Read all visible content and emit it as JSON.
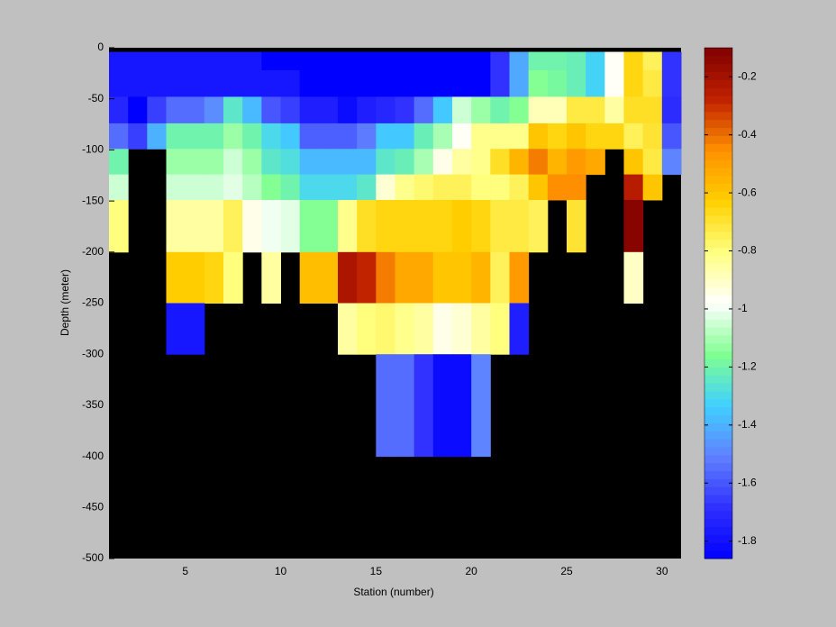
{
  "chart_data": {
    "type": "heatmap",
    "xlabel": "Station (number)",
    "ylabel": "Depth (meter)",
    "x_edges": [
      1,
      2,
      3,
      4,
      5,
      6,
      7,
      8,
      9,
      10,
      11,
      12,
      13,
      14,
      15,
      16,
      17,
      18,
      19,
      20,
      21,
      22,
      23,
      24,
      25,
      26,
      27,
      28,
      29,
      30,
      31
    ],
    "y_edges": [
      0,
      -4,
      -22,
      -48,
      -74,
      -99,
      -124,
      -149,
      -200,
      -250,
      -300,
      -400,
      -500
    ],
    "values": [
      [
        null,
        null,
        null,
        null,
        null,
        null,
        null,
        null,
        null,
        null,
        null,
        null,
        null,
        null,
        null,
        null,
        null,
        null,
        null,
        null,
        null,
        null,
        null,
        null,
        null,
        null,
        null,
        null,
        null,
        null
      ],
      [
        -1.78,
        -1.78,
        -1.78,
        -1.78,
        -1.78,
        -1.78,
        -1.78,
        -1.78,
        -1.86,
        -1.86,
        -1.86,
        -1.86,
        -1.86,
        -1.86,
        -1.86,
        -1.86,
        -1.86,
        -1.86,
        -1.86,
        -1.86,
        -1.68,
        -1.42,
        -1.2,
        -1.2,
        -1.22,
        -1.32,
        -0.97,
        -0.65,
        -0.75,
        -1.68
      ],
      [
        -1.78,
        -1.78,
        -1.78,
        -1.78,
        -1.78,
        -1.78,
        -1.78,
        -1.78,
        -1.78,
        -1.78,
        -1.86,
        -1.86,
        -1.86,
        -1.86,
        -1.86,
        -1.86,
        -1.86,
        -1.86,
        -1.86,
        -1.86,
        -1.68,
        -1.42,
        -1.15,
        -1.18,
        -1.22,
        -1.32,
        -0.97,
        -0.65,
        -0.72,
        -1.68
      ],
      [
        -1.72,
        -1.86,
        -1.65,
        -1.55,
        -1.55,
        -1.48,
        -1.25,
        -1.38,
        -1.6,
        -1.65,
        -1.75,
        -1.75,
        -1.82,
        -1.75,
        -1.72,
        -1.68,
        -1.55,
        -1.35,
        -1.05,
        -1.12,
        -1.2,
        -1.15,
        -0.88,
        -0.88,
        -0.72,
        -0.72,
        -0.85,
        -0.68,
        -0.68,
        -1.7
      ],
      [
        -1.55,
        -1.65,
        -1.4,
        -1.2,
        -1.2,
        -1.2,
        -1.12,
        -1.2,
        -1.3,
        -1.35,
        -1.58,
        -1.58,
        -1.58,
        -1.52,
        -1.35,
        -1.35,
        -1.22,
        -1.1,
        -0.97,
        -0.82,
        -0.82,
        -0.82,
        -0.6,
        -0.65,
        -0.6,
        -0.65,
        -0.65,
        -0.75,
        -0.7,
        -1.6
      ],
      [
        -1.2,
        null,
        null,
        -1.12,
        -1.12,
        -1.12,
        -1.05,
        -1.12,
        -1.25,
        -1.28,
        -1.38,
        -1.38,
        -1.38,
        -1.38,
        -1.25,
        -1.22,
        -1.1,
        -0.95,
        -0.85,
        -0.82,
        -0.68,
        -0.55,
        -0.42,
        -0.55,
        -0.48,
        -0.52,
        null,
        -0.6,
        -0.72,
        -1.5
      ],
      [
        -1.05,
        null,
        null,
        -1.05,
        -1.05,
        -1.05,
        -1.02,
        -1.08,
        -1.15,
        -1.2,
        -1.3,
        -1.3,
        -1.3,
        -1.25,
        -0.92,
        -0.82,
        -0.78,
        -0.75,
        -0.75,
        -0.8,
        -0.8,
        -0.75,
        -0.6,
        -0.45,
        -0.45,
        null,
        null,
        -0.25,
        -0.6,
        null
      ],
      [
        -0.8,
        null,
        null,
        -0.85,
        -0.85,
        -0.85,
        -0.75,
        -0.95,
        -1.0,
        -1.02,
        -1.15,
        -1.15,
        -0.82,
        -0.68,
        -0.65,
        -0.65,
        -0.65,
        -0.65,
        -0.62,
        -0.65,
        -0.72,
        -0.72,
        -0.75,
        null,
        -0.7,
        null,
        null,
        -0.12,
        null,
        null
      ],
      [
        null,
        null,
        null,
        -0.62,
        -0.62,
        -0.65,
        -0.8,
        null,
        -0.85,
        null,
        -0.58,
        -0.58,
        -0.22,
        -0.28,
        -0.42,
        -0.52,
        -0.52,
        -0.6,
        -0.6,
        -0.55,
        -0.75,
        -0.48,
        null,
        null,
        null,
        null,
        null,
        -0.9,
        null,
        null
      ],
      [
        null,
        null,
        null,
        -1.78,
        -1.78,
        null,
        null,
        null,
        null,
        null,
        null,
        null,
        -0.85,
        -0.8,
        -0.78,
        -0.82,
        -0.85,
        -0.95,
        -0.92,
        -0.85,
        -0.8,
        -1.75,
        null,
        null,
        null,
        null,
        null,
        null,
        null,
        null
      ],
      [
        null,
        null,
        null,
        null,
        null,
        null,
        null,
        null,
        null,
        null,
        null,
        null,
        null,
        null,
        -1.55,
        -1.55,
        -1.68,
        -1.82,
        -1.82,
        -1.5,
        null,
        null,
        null,
        null,
        null,
        null,
        null,
        null,
        null,
        null
      ],
      [
        null,
        null,
        null,
        null,
        null,
        null,
        null,
        null,
        null,
        null,
        null,
        null,
        null,
        null,
        null,
        null,
        null,
        null,
        null,
        null,
        null,
        null,
        null,
        null,
        null,
        null,
        null,
        null,
        null,
        null
      ]
    ],
    "xlim": [
      1,
      31
    ],
    "ylim": [
      -500,
      0
    ],
    "xticks": [
      5,
      10,
      15,
      20,
      25,
      30
    ],
    "yticks": [
      -500,
      -450,
      -400,
      -350,
      -300,
      -250,
      -200,
      -150,
      -100,
      -50,
      0
    ],
    "clim": [
      -1.86,
      -0.1
    ],
    "cticks": [
      -1.8,
      -1.6,
      -1.4,
      -1.2,
      -1,
      -0.8,
      -0.6,
      -0.4,
      -0.2
    ],
    "colormap": [
      "#0000ff",
      "#3030ff",
      "#6080ff",
      "#40d0ff",
      "#80ff90",
      "#ffffff",
      "#ffff80",
      "#ffd000",
      "#ff9000",
      "#c02000",
      "#800000"
    ],
    "missing_color": "#000000"
  }
}
